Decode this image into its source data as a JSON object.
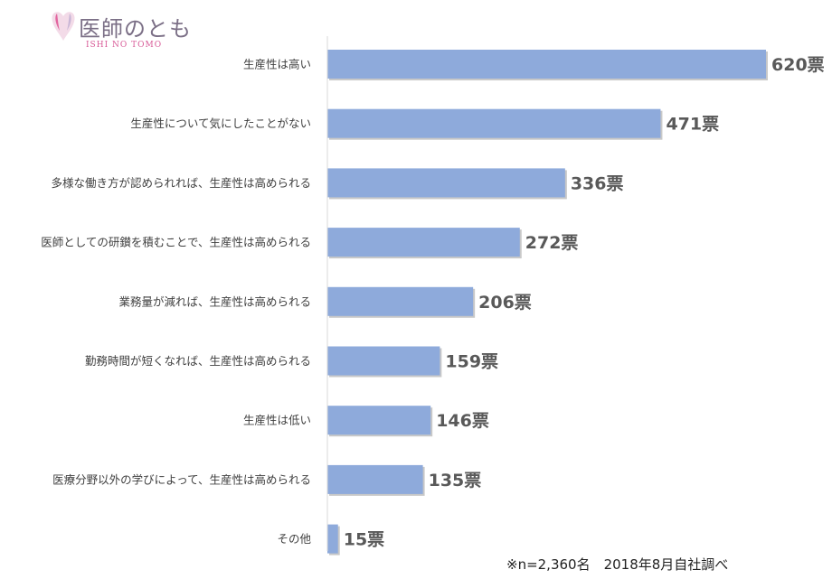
{
  "logo": {
    "title": "医師のとも",
    "subtitle": "ISHI NO TOMO",
    "icon": "heart-drop-icon",
    "colors": {
      "pink": "#e2659f",
      "lilac": "#c9b6d6"
    }
  },
  "note": "※n=2,360名　2018年8月自社調べ",
  "colors": {
    "bar": "#8eaadb",
    "bar_shadow": "#c8c8c8",
    "axis": "#d9d9d9",
    "value_text": "#595959",
    "label_text": "#404040"
  },
  "chart_data": {
    "type": "bar",
    "orientation": "horizontal",
    "categories": [
      "生産性は高い",
      "生産性について気にしたことがない",
      "多様な働き方が認められれば、生産性は高められる",
      "医師としての研鑚を積むことで、生産性は高められる",
      "業務量が減れば、生産性は高められる",
      "勤務時間が短くなれば、生産性は高められる",
      "生産性は低い",
      "医療分野以外の学びによって、生産性は高められる",
      "その他"
    ],
    "values": [
      620,
      471,
      336,
      272,
      206,
      159,
      146,
      135,
      15
    ],
    "data_labels": [
      "620票",
      "471票",
      "336票",
      "272票",
      "206票",
      "159票",
      "146票",
      "135票",
      "15票"
    ],
    "xlim": [
      0,
      620
    ],
    "grid": false,
    "legend": "none"
  }
}
